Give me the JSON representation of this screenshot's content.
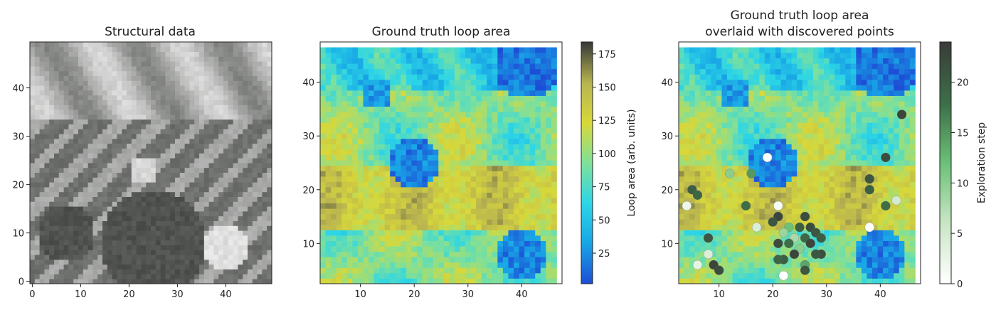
{
  "figure": {
    "panel_count": 3
  },
  "chart_data": [
    {
      "type": "heatmap",
      "title": "Structural data",
      "xlabel": "",
      "ylabel": "",
      "xlim": [
        -0.5,
        49.5
      ],
      "ylim": [
        -0.5,
        49.5
      ],
      "xticks": [
        "0",
        "10",
        "20",
        "30",
        "40"
      ],
      "yticks": [
        "0",
        "10",
        "20",
        "30",
        "40"
      ],
      "colormap": "grayscale",
      "grid_size": [
        50,
        50
      ],
      "dark_color": "#3a3d39",
      "light_color": "#f2f2f2"
    },
    {
      "type": "heatmap",
      "title": "Ground truth loop area",
      "xlabel": "",
      "ylabel": "",
      "xlim": [
        2.5,
        47.5
      ],
      "ylim": [
        2.5,
        47.5
      ],
      "xticks": [
        "10",
        "20",
        "30",
        "40"
      ],
      "yticks": [
        "10",
        "20",
        "30",
        "40"
      ],
      "grid_range": [
        3,
        46
      ],
      "colorbar": {
        "label": "Loop area (arb. units)",
        "range": [
          2,
          184
        ],
        "ticks": [
          "25",
          "50",
          "75",
          "100",
          "125",
          "150",
          "175"
        ],
        "colors": [
          "#1d4fd6",
          "#18a6e6",
          "#2dd6e6",
          "#7fe09a",
          "#d8d83a",
          "#b9b450",
          "#3a3d39"
        ]
      }
    },
    {
      "type": "scatter",
      "title_line1": "Ground truth loop area",
      "title_line2": "overlaid with discovered points",
      "xlabel": "",
      "ylabel": "",
      "xlim": [
        2.5,
        47.5
      ],
      "ylim": [
        2.5,
        47.5
      ],
      "xticks": [
        "10",
        "20",
        "30",
        "40"
      ],
      "yticks": [
        "10",
        "20",
        "30",
        "40"
      ],
      "background": "ground truth loop area heatmap",
      "points": [
        {
          "x": 44,
          "y": 34,
          "step": 23
        },
        {
          "x": 19,
          "y": 26,
          "step": 0
        },
        {
          "x": 41,
          "y": 26,
          "step": 22
        },
        {
          "x": 38,
          "y": 22,
          "step": 21
        },
        {
          "x": 38,
          "y": 20,
          "step": 20
        },
        {
          "x": 5,
          "y": 20,
          "step": 20
        },
        {
          "x": 6,
          "y": 19,
          "step": 19
        },
        {
          "x": 41,
          "y": 17,
          "step": 18
        },
        {
          "x": 4,
          "y": 17,
          "step": 2
        },
        {
          "x": 21,
          "y": 17,
          "step": 1
        },
        {
          "x": 38,
          "y": 13,
          "step": 0
        },
        {
          "x": 21,
          "y": 15,
          "step": 23
        },
        {
          "x": 26,
          "y": 15,
          "step": 22
        },
        {
          "x": 20,
          "y": 14,
          "step": 21
        },
        {
          "x": 23,
          "y": 13,
          "step": 12
        },
        {
          "x": 25,
          "y": 13,
          "step": 20
        },
        {
          "x": 27,
          "y": 13,
          "step": 22
        },
        {
          "x": 28,
          "y": 12,
          "step": 21
        },
        {
          "x": 29,
          "y": 11,
          "step": 20
        },
        {
          "x": 26,
          "y": 11,
          "step": 19
        },
        {
          "x": 24,
          "y": 11,
          "step": 8
        },
        {
          "x": 22,
          "y": 12,
          "step": 9
        },
        {
          "x": 27,
          "y": 10,
          "step": 23
        },
        {
          "x": 23,
          "y": 10,
          "step": 18
        },
        {
          "x": 21,
          "y": 10,
          "step": 22
        },
        {
          "x": 25,
          "y": 9,
          "step": 10
        },
        {
          "x": 8,
          "y": 11,
          "step": 21
        },
        {
          "x": 8,
          "y": 8,
          "step": 4
        },
        {
          "x": 29,
          "y": 8,
          "step": 22
        },
        {
          "x": 28,
          "y": 8,
          "step": 21
        },
        {
          "x": 24,
          "y": 8,
          "step": 23
        },
        {
          "x": 22,
          "y": 7,
          "step": 20
        },
        {
          "x": 21,
          "y": 7,
          "step": 19
        },
        {
          "x": 26,
          "y": 6,
          "step": 14
        },
        {
          "x": 9,
          "y": 6,
          "step": 23
        },
        {
          "x": 10,
          "y": 5,
          "step": 22
        },
        {
          "x": 26,
          "y": 5,
          "step": 21
        },
        {
          "x": 6,
          "y": 6,
          "step": 3
        },
        {
          "x": 22,
          "y": 4,
          "step": 0
        },
        {
          "x": 12,
          "y": 23,
          "step": 10
        },
        {
          "x": 16,
          "y": 23,
          "step": 15
        },
        {
          "x": 43,
          "y": 18,
          "step": 5
        },
        {
          "x": 15,
          "y": 17,
          "step": 18
        },
        {
          "x": 17,
          "y": 13,
          "step": 4
        }
      ],
      "colorbar": {
        "label": "Exploration step",
        "range": [
          0,
          24
        ],
        "ticks": [
          "0",
          "5",
          "10",
          "15",
          "20"
        ],
        "colors": [
          "#ffffff",
          "#c9e6c4",
          "#6cc178",
          "#3d6e48",
          "#3a3d39"
        ]
      }
    }
  ]
}
